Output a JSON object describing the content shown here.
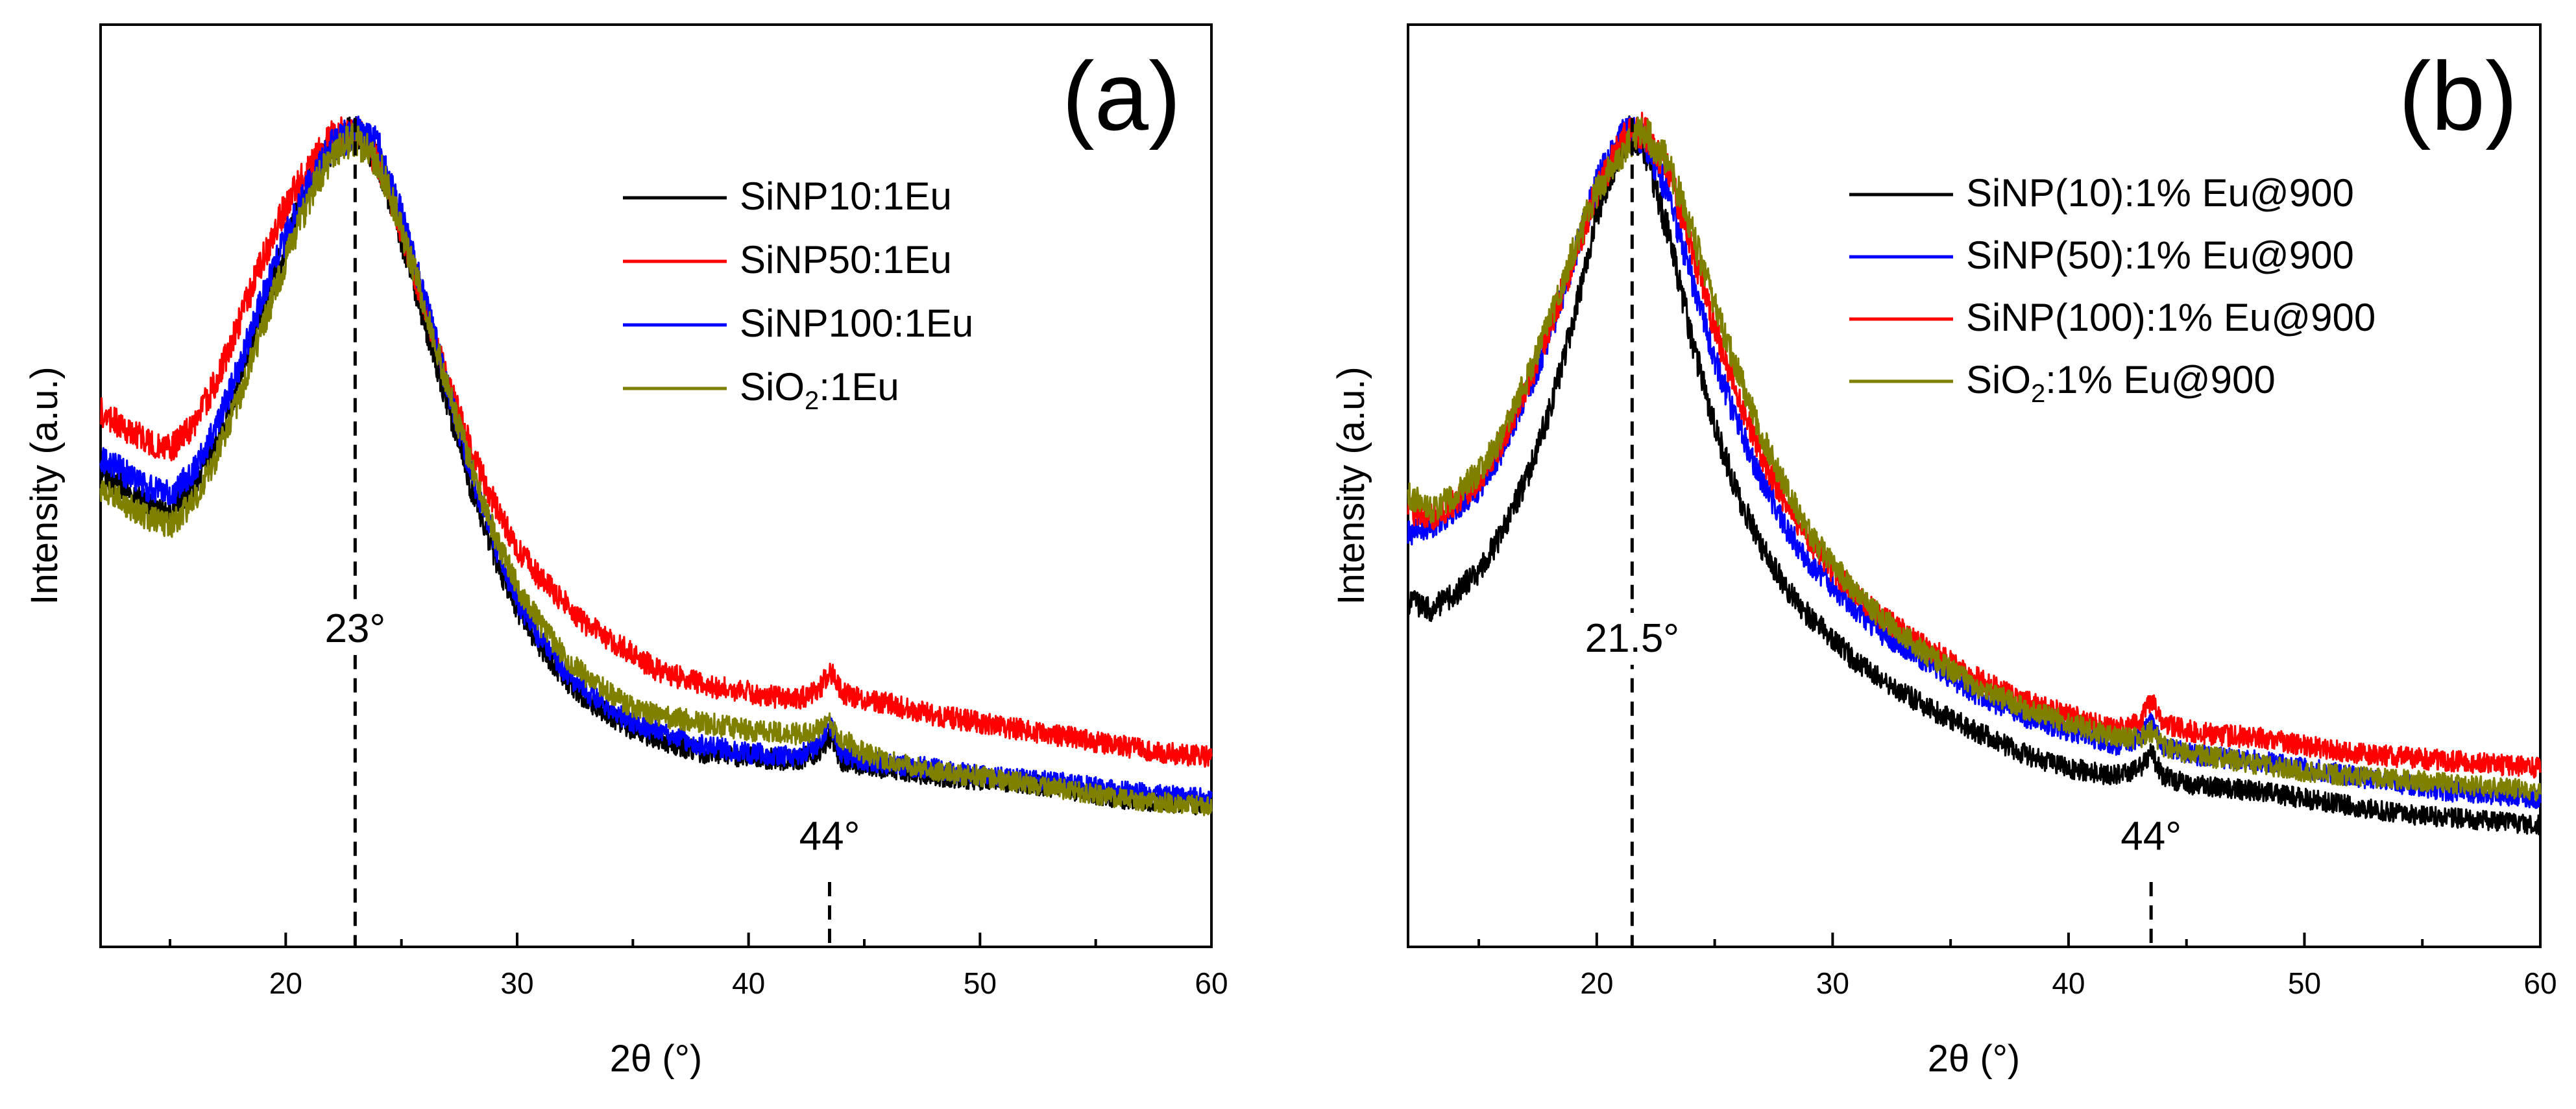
{
  "chart_data": [
    {
      "type": "line",
      "panel_label": "(a)",
      "xlabel": "2θ (°)",
      "ylabel": "Intensity (a.u.)",
      "xlim": [
        12,
        60
      ],
      "ylim": [
        0,
        1
      ],
      "y_ticks_shown": false,
      "x_ticks": [
        20,
        30,
        40,
        50,
        60
      ],
      "x_tick_labels": [
        "20",
        "30",
        "40",
        "50",
        "60"
      ],
      "legend_position": "top-right",
      "grid": false,
      "series": [
        {
          "name": "SiNP10:1Eu",
          "color": "#000000",
          "x": [
            12,
            14,
            15,
            16,
            17,
            18,
            19,
            20,
            21,
            22,
            23,
            24,
            25,
            26,
            27,
            28,
            29,
            30,
            31,
            32,
            33,
            34,
            35,
            36,
            38,
            40,
            42,
            43,
            43.5,
            44,
            45,
            46,
            48,
            50,
            52,
            54,
            56,
            58,
            60
          ],
          "y": [
            0.54,
            0.5,
            0.49,
            0.52,
            0.58,
            0.66,
            0.75,
            0.84,
            0.92,
            0.97,
            0.99,
            0.95,
            0.85,
            0.74,
            0.63,
            0.52,
            0.43,
            0.36,
            0.31,
            0.27,
            0.24,
            0.22,
            0.2,
            0.19,
            0.17,
            0.165,
            0.16,
            0.17,
            0.19,
            0.16,
            0.15,
            0.15,
            0.14,
            0.135,
            0.13,
            0.12,
            0.11,
            0.105,
            0.1
          ]
        },
        {
          "name": "SiNP50:1Eu",
          "color": "#ff0000",
          "x": [
            12,
            14,
            15,
            16,
            17,
            18,
            19,
            20,
            21,
            22,
            23,
            24,
            25,
            26,
            27,
            28,
            29,
            30,
            31,
            32,
            33,
            34,
            35,
            36,
            38,
            40,
            42,
            43,
            43.5,
            44,
            45,
            46,
            48,
            50,
            52,
            54,
            56,
            58,
            60
          ],
          "y": [
            0.62,
            0.58,
            0.57,
            0.6,
            0.66,
            0.74,
            0.82,
            0.89,
            0.94,
            0.98,
            0.99,
            0.95,
            0.86,
            0.76,
            0.66,
            0.57,
            0.5,
            0.44,
            0.4,
            0.37,
            0.34,
            0.32,
            0.3,
            0.28,
            0.26,
            0.25,
            0.24,
            0.25,
            0.28,
            0.25,
            0.24,
            0.235,
            0.22,
            0.21,
            0.2,
            0.19,
            0.18,
            0.17,
            0.165
          ]
        },
        {
          "name": "SiNP100:1Eu",
          "color": "#0000ff",
          "x": [
            12,
            14,
            15,
            16,
            17,
            18,
            19,
            20,
            21,
            22,
            23,
            24,
            25,
            26,
            27,
            28,
            29,
            30,
            31,
            32,
            33,
            34,
            35,
            36,
            38,
            40,
            42,
            43,
            43.5,
            44,
            45,
            46,
            48,
            50,
            52,
            54,
            56,
            58,
            60
          ],
          "y": [
            0.56,
            0.52,
            0.51,
            0.54,
            0.6,
            0.68,
            0.77,
            0.85,
            0.92,
            0.97,
            0.99,
            0.97,
            0.88,
            0.77,
            0.65,
            0.54,
            0.45,
            0.37,
            0.32,
            0.28,
            0.25,
            0.23,
            0.21,
            0.2,
            0.18,
            0.17,
            0.165,
            0.18,
            0.21,
            0.17,
            0.16,
            0.155,
            0.15,
            0.14,
            0.135,
            0.13,
            0.12,
            0.115,
            0.11
          ]
        },
        {
          "name": "SiO₂:1Eu",
          "color": "#808000",
          "x": [
            12,
            14,
            15,
            16,
            17,
            18,
            19,
            20,
            21,
            22,
            23,
            24,
            25,
            26,
            27,
            28,
            29,
            30,
            31,
            32,
            33,
            34,
            35,
            36,
            38,
            40,
            42,
            43,
            43.5,
            44,
            45,
            46,
            48,
            50,
            52,
            54,
            56,
            58,
            60
          ],
          "y": [
            0.52,
            0.48,
            0.47,
            0.5,
            0.56,
            0.64,
            0.73,
            0.82,
            0.9,
            0.96,
            0.98,
            0.95,
            0.86,
            0.76,
            0.65,
            0.55,
            0.46,
            0.39,
            0.34,
            0.3,
            0.27,
            0.25,
            0.23,
            0.22,
            0.21,
            0.2,
            0.195,
            0.2,
            0.21,
            0.19,
            0.17,
            0.16,
            0.145,
            0.14,
            0.13,
            0.12,
            0.11,
            0.105,
            0.1
          ]
        }
      ],
      "annotations": [
        {
          "text": "23°",
          "x": 23
        },
        {
          "text": "44°",
          "x": 43.5
        }
      ]
    },
    {
      "type": "line",
      "panel_label": "(b)",
      "xlabel": "2θ (°)",
      "ylabel": "Intensity (a.u.)",
      "xlim": [
        12,
        60
      ],
      "ylim": [
        0,
        1
      ],
      "y_ticks_shown": false,
      "x_ticks": [
        20,
        30,
        40,
        50,
        60
      ],
      "x_tick_labels": [
        "20",
        "30",
        "40",
        "50",
        "60"
      ],
      "legend_position": "top-right",
      "grid": false,
      "series": [
        {
          "name": "SiNP(10):1% Eu@900",
          "color": "#000000",
          "x": [
            12,
            13,
            14,
            15,
            16,
            17,
            18,
            19,
            20,
            21,
            21.5,
            22,
            23,
            24,
            25,
            26,
            27,
            28,
            29,
            30,
            31,
            32,
            34,
            36,
            38,
            40,
            42,
            43,
            43.5,
            44,
            45,
            46,
            48,
            50,
            52,
            54,
            56,
            58,
            60
          ],
          "y": [
            0.37,
            0.36,
            0.38,
            0.41,
            0.46,
            0.53,
            0.62,
            0.74,
            0.88,
            0.97,
            0.99,
            0.97,
            0.86,
            0.72,
            0.6,
            0.51,
            0.44,
            0.39,
            0.35,
            0.32,
            0.29,
            0.27,
            0.23,
            0.2,
            0.17,
            0.15,
            0.14,
            0.15,
            0.17,
            0.14,
            0.13,
            0.125,
            0.12,
            0.11,
            0.1,
            0.09,
            0.085,
            0.08,
            0.075
          ]
        },
        {
          "name": "SiNP(50):1% Eu@900",
          "color": "#0000ff",
          "x": [
            12,
            13,
            14,
            15,
            16,
            17,
            18,
            19,
            20,
            21,
            21.5,
            22,
            23,
            24,
            25,
            26,
            27,
            28,
            29,
            30,
            31,
            32,
            34,
            36,
            38,
            40,
            42,
            43,
            43.5,
            44,
            45,
            46,
            48,
            50,
            52,
            54,
            56,
            58,
            60
          ],
          "y": [
            0.46,
            0.47,
            0.49,
            0.52,
            0.57,
            0.64,
            0.72,
            0.82,
            0.92,
            0.98,
            0.99,
            0.98,
            0.91,
            0.8,
            0.69,
            0.6,
            0.53,
            0.47,
            0.42,
            0.39,
            0.36,
            0.33,
            0.29,
            0.25,
            0.22,
            0.2,
            0.18,
            0.19,
            0.21,
            0.18,
            0.17,
            0.165,
            0.16,
            0.15,
            0.14,
            0.13,
            0.12,
            0.115,
            0.11
          ]
        },
        {
          "name": "SiNP(100):1% Eu@900",
          "color": "#ff0000",
          "x": [
            12,
            13,
            14,
            15,
            16,
            17,
            18,
            19,
            20,
            21,
            21.5,
            22,
            23,
            24,
            25,
            26,
            27,
            28,
            29,
            30,
            31,
            32,
            34,
            36,
            38,
            40,
            42,
            43,
            43.5,
            44,
            45,
            46,
            48,
            50,
            52,
            54,
            56,
            58,
            60
          ],
          "y": [
            0.49,
            0.48,
            0.5,
            0.53,
            0.58,
            0.65,
            0.73,
            0.82,
            0.91,
            0.97,
            0.99,
            0.99,
            0.94,
            0.84,
            0.73,
            0.64,
            0.56,
            0.5,
            0.45,
            0.41,
            0.38,
            0.35,
            0.31,
            0.27,
            0.24,
            0.22,
            0.2,
            0.21,
            0.24,
            0.21,
            0.2,
            0.195,
            0.19,
            0.18,
            0.17,
            0.165,
            0.16,
            0.155,
            0.15
          ]
        },
        {
          "name": "SiO₂:1% Eu@900",
          "color": "#808000",
          "x": [
            12,
            13,
            14,
            15,
            16,
            17,
            18,
            19,
            20,
            21,
            21.5,
            22,
            23,
            24,
            25,
            26,
            27,
            28,
            29,
            30,
            31,
            32,
            34,
            36,
            38,
            40,
            42,
            43,
            43.5,
            44,
            45,
            46,
            48,
            50,
            52,
            54,
            56,
            58,
            60
          ],
          "y": [
            0.51,
            0.49,
            0.51,
            0.54,
            0.59,
            0.66,
            0.74,
            0.83,
            0.91,
            0.96,
            0.98,
            0.99,
            0.95,
            0.86,
            0.76,
            0.67,
            0.59,
            0.52,
            0.46,
            0.42,
            0.38,
            0.35,
            0.3,
            0.26,
            0.23,
            0.21,
            0.19,
            0.19,
            0.2,
            0.18,
            0.17,
            0.165,
            0.155,
            0.145,
            0.14,
            0.135,
            0.13,
            0.125,
            0.12
          ]
        }
      ],
      "annotations": [
        {
          "text": "21.5°",
          "x": 21.5
        },
        {
          "text": "44°",
          "x": 43.5
        }
      ]
    }
  ]
}
